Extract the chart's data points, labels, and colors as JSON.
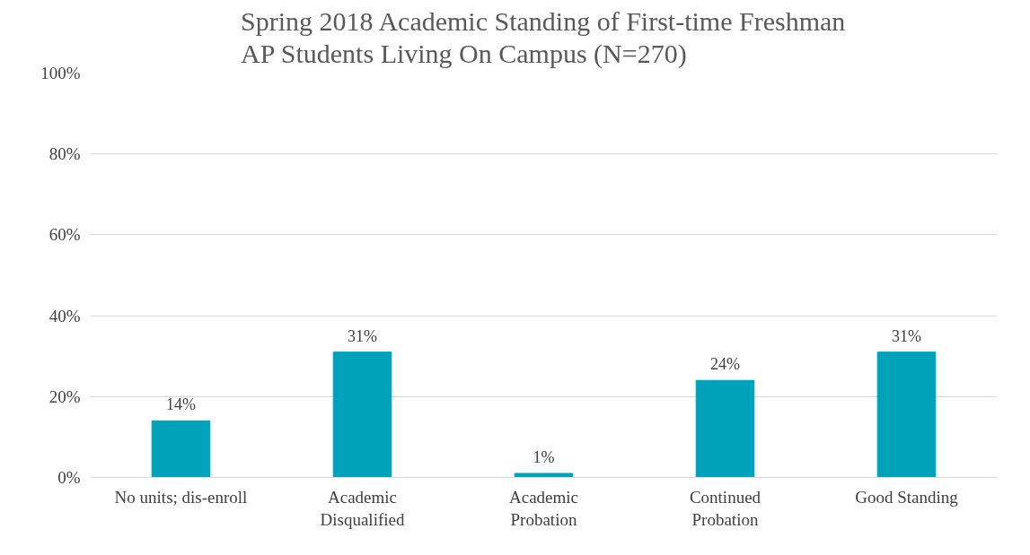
{
  "chart_data": {
    "type": "bar",
    "title": "Spring 2018 Academic Standing of First-time Freshman\nAP Students Living On Campus (N=270)",
    "categories": [
      "No units; dis-enroll",
      "Academic\nDisqualified",
      "Academic\nProbation",
      "Continued\nProbation",
      "Good Standing"
    ],
    "values": [
      14,
      31,
      1,
      24,
      31
    ],
    "value_labels": [
      "14%",
      "31%",
      "1%",
      "24%",
      "31%"
    ],
    "color": "#00a2b9",
    "ylim": [
      0,
      100
    ],
    "yticks": [
      {
        "value": 0,
        "label": "0%"
      },
      {
        "value": 20,
        "label": "20%"
      },
      {
        "value": 40,
        "label": "40%"
      },
      {
        "value": 60,
        "label": "60%"
      },
      {
        "value": 80,
        "label": "80%"
      },
      {
        "value": 100,
        "label": "100%"
      }
    ],
    "grid": "y"
  }
}
